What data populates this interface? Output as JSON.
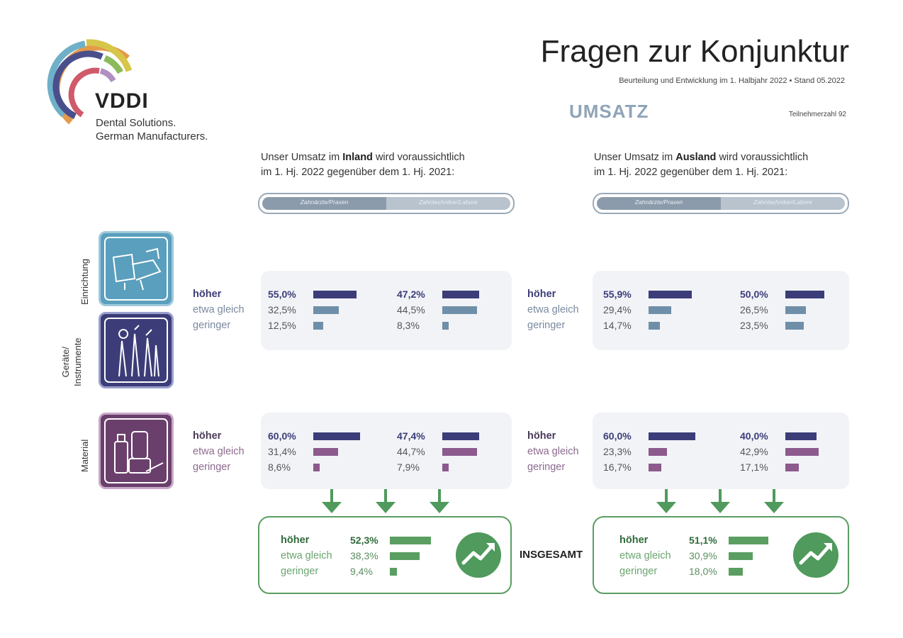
{
  "header": {
    "logo_name": "VDDI",
    "logo_line1": "Dental Solutions.",
    "logo_line2": "German Manufacturers.",
    "title": "Fragen zur Konjunktur",
    "subtitle": "Beurteilung und Entwicklung im 1. Halbjahr 2022 • Stand 05.2022",
    "section": "UMSATZ",
    "participants": "Teilnehmerzahl 92"
  },
  "inland": {
    "intro_pre": "Unser Umsatz im ",
    "intro_bold": "Inland",
    "intro_post": " wird voraussichtlich",
    "intro_line2": "im 1. Hj. 2022 gegenüber dem 1. Hj. 2021:",
    "pill_left": "Zahnärzte/Praxen",
    "pill_right": "Zahntechniker/Labore"
  },
  "ausland": {
    "intro_pre": "Unser Umsatz im ",
    "intro_bold": "Ausland",
    "intro_post": " wird voraussichtlich",
    "intro_line2": "im 1. Hj. 2022 gegenüber dem 1. Hj. 2021:",
    "pill_left": "Zahnärzte/Praxen",
    "pill_right": "Zahntechniker/Labore"
  },
  "categories": {
    "einrichtung": "Einrichtung",
    "geraete_line1": "Geräte/",
    "geraete_line2": "Instrumente",
    "material": "Material"
  },
  "row_labels": {
    "hi": "höher",
    "mid": "etwa gleich",
    "lo": "geringer"
  },
  "summary_label": "INSGESAMT",
  "colors": {
    "navy": "#3c3d78",
    "steel": "#6f8fa8",
    "purple": "#8c5a8c",
    "green": "#5a9e62"
  },
  "chart_data": [
    {
      "type": "bar",
      "group": "Einrichtung / Geräte/Instrumente",
      "market": "Inland",
      "segment": "Zahnärzte/Praxen",
      "categories": [
        "höher",
        "etwa gleich",
        "geringer"
      ],
      "values": [
        55.0,
        32.5,
        12.5
      ],
      "labels": [
        "55,0%",
        "32,5%",
        "12,5%"
      ]
    },
    {
      "type": "bar",
      "group": "Einrichtung / Geräte/Instrumente",
      "market": "Inland",
      "segment": "Zahntechniker/Labore",
      "categories": [
        "höher",
        "etwa gleich",
        "geringer"
      ],
      "values": [
        47.2,
        44.5,
        8.3
      ],
      "labels": [
        "47,2%",
        "44,5%",
        "8,3%"
      ]
    },
    {
      "type": "bar",
      "group": "Einrichtung / Geräte/Instrumente",
      "market": "Ausland",
      "segment": "Zahnärzte/Praxen",
      "categories": [
        "höher",
        "etwa gleich",
        "geringer"
      ],
      "values": [
        55.9,
        29.4,
        14.7
      ],
      "labels": [
        "55,9%",
        "29,4%",
        "14,7%"
      ]
    },
    {
      "type": "bar",
      "group": "Einrichtung / Geräte/Instrumente",
      "market": "Ausland",
      "segment": "Zahntechniker/Labore",
      "categories": [
        "höher",
        "etwa gleich",
        "geringer"
      ],
      "values": [
        50.0,
        26.5,
        23.5
      ],
      "labels": [
        "50,0%",
        "26,5%",
        "23,5%"
      ]
    },
    {
      "type": "bar",
      "group": "Material",
      "market": "Inland",
      "segment": "Zahnärzte/Praxen",
      "categories": [
        "höher",
        "etwa gleich",
        "geringer"
      ],
      "values": [
        60.0,
        31.4,
        8.6
      ],
      "labels": [
        "60,0%",
        "31,4%",
        "8,6%"
      ]
    },
    {
      "type": "bar",
      "group": "Material",
      "market": "Inland",
      "segment": "Zahntechniker/Labore",
      "categories": [
        "höher",
        "etwa gleich",
        "geringer"
      ],
      "values": [
        47.4,
        44.7,
        7.9
      ],
      "labels": [
        "47,4%",
        "44,7%",
        "7,9%"
      ]
    },
    {
      "type": "bar",
      "group": "Material",
      "market": "Ausland",
      "segment": "Zahnärzte/Praxen",
      "categories": [
        "höher",
        "etwa gleich",
        "geringer"
      ],
      "values": [
        60.0,
        23.3,
        16.7
      ],
      "labels": [
        "60,0%",
        "23,3%",
        "16,7%"
      ]
    },
    {
      "type": "bar",
      "group": "Material",
      "market": "Ausland",
      "segment": "Zahntechniker/Labore",
      "categories": [
        "höher",
        "etwa gleich",
        "geringer"
      ],
      "values": [
        40.0,
        42.9,
        17.1
      ],
      "labels": [
        "40,0%",
        "42,9%",
        "17,1%"
      ]
    },
    {
      "type": "bar",
      "group": "INSGESAMT",
      "market": "Inland",
      "categories": [
        "höher",
        "etwa gleich",
        "geringer"
      ],
      "values": [
        52.3,
        38.3,
        9.4
      ],
      "labels": [
        "52,3%",
        "38,3%",
        "9,4%"
      ]
    },
    {
      "type": "bar",
      "group": "INSGESAMT",
      "market": "Ausland",
      "categories": [
        "höher",
        "etwa gleich",
        "geringer"
      ],
      "values": [
        51.1,
        30.9,
        18.0
      ],
      "labels": [
        "51,1%",
        "30,9%",
        "18,0%"
      ]
    }
  ]
}
